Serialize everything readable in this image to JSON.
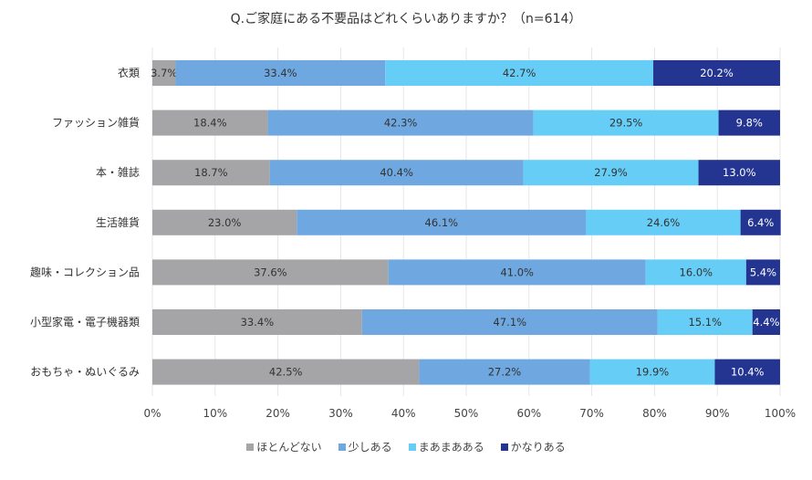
{
  "chart_data": {
    "type": "bar",
    "orientation": "horizontal",
    "stacked": true,
    "title": "Q.ご家庭にある不要品はどれくらいありますか？（n=614）",
    "categories": [
      "衣類",
      "ファッション雑貨",
      "本・雑誌",
      "生活雑貨",
      "趣味・コレクション品",
      "小型家電・電子機器類",
      "おもちゃ・ぬいぐるみ"
    ],
    "series": [
      {
        "name": "ほとんどない",
        "color": "#a5a5a8",
        "values": [
          3.7,
          18.4,
          18.7,
          23.0,
          37.6,
          33.4,
          42.5
        ]
      },
      {
        "name": "少しある",
        "color": "#6fa8e0",
        "values": [
          33.4,
          42.3,
          40.4,
          46.1,
          41.0,
          47.1,
          27.2
        ]
      },
      {
        "name": "まあまあある",
        "color": "#66cdf6",
        "values": [
          42.7,
          29.5,
          27.9,
          24.6,
          16.0,
          15.1,
          19.9
        ]
      },
      {
        "name": "かなりある",
        "color": "#233591",
        "values": [
          20.2,
          9.8,
          13.0,
          6.4,
          5.4,
          4.4,
          10.4
        ]
      }
    ],
    "xlim": [
      0,
      100
    ],
    "xticks": [
      "0%",
      "10%",
      "20%",
      "30%",
      "40%",
      "50%",
      "60%",
      "70%",
      "80%",
      "90%",
      "100%"
    ],
    "grid": true,
    "legend": "bottom"
  }
}
